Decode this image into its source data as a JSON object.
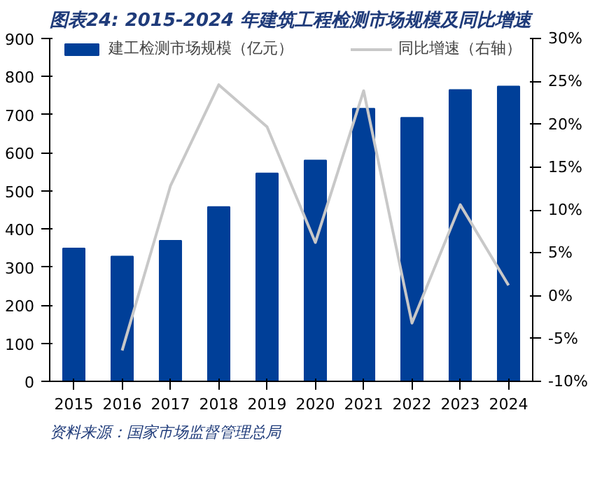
{
  "chart_data": {
    "type": "bar",
    "title": "图表24:  2015-2024 年建筑工程检测市场规模及同比增速",
    "annotations": [
      "资料来源：国家市场监督管理总局"
    ],
    "categories": [
      "2015",
      "2016",
      "2017",
      "2018",
      "2019",
      "2020",
      "2021",
      "2022",
      "2023",
      "2024"
    ],
    "series": [
      {
        "name": "建工检测市场规模（亿元）",
        "color": "#003f98",
        "values": [
          349,
          328,
          369,
          458,
          546,
          580,
          716,
          692,
          765,
          774
        ]
      },
      {
        "name": "同比增速（右轴）",
        "type": "line",
        "axis": "y2",
        "color": "#c8c8c8",
        "values": [
          null,
          -6.4,
          12.8,
          24.6,
          19.7,
          6.2,
          23.9,
          -3.2,
          10.6,
          1.2
        ]
      }
    ],
    "ylim": [
      0,
      900
    ],
    "yticks": [
      0,
      100,
      200,
      300,
      400,
      500,
      600,
      700,
      800,
      900
    ],
    "y2lim": [
      -10,
      30
    ],
    "y2ticks": [
      {
        "value": -10,
        "label": "-10%"
      },
      {
        "value": -5,
        "label": "-5%"
      },
      {
        "value": 0,
        "label": "0%"
      },
      {
        "value": 5,
        "label": "5%"
      },
      {
        "value": 10,
        "label": "10%"
      },
      {
        "value": 15,
        "label": "15%"
      },
      {
        "value": 20,
        "label": "20%"
      },
      {
        "value": 25,
        "label": "25%"
      },
      {
        "value": 30,
        "label": "30%"
      }
    ],
    "grid": false,
    "legend": "top",
    "marker": "none",
    "line_style": "solid"
  }
}
